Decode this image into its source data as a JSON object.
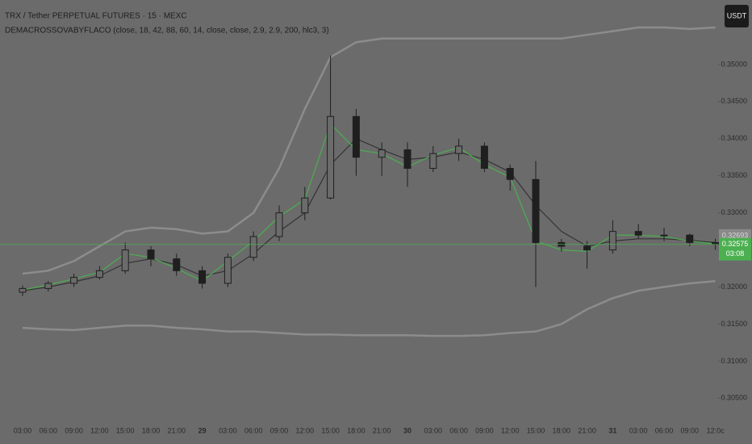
{
  "chart_data": {
    "type": "candlestick",
    "title": "TRX / Tether PERPETUAL FUTURES · 15 · MEXC",
    "subtitle": "DEMACROSSOVABYFLACO (close, 18, 42, 88, 60, 14, close, close, 2.9, 2.9, 200, hlc3, 3)",
    "currency_button": "USDT",
    "categories": [
      "03:00",
      "06:00",
      "09:00",
      "12:00",
      "15:00",
      "18:00",
      "21:00",
      "29",
      "03:00",
      "06:00",
      "09:00",
      "12:00",
      "15:00",
      "18:00",
      "21:00",
      "30",
      "03:00",
      "06:00",
      "09:00",
      "12:00",
      "15:00",
      "18:00",
      "21:00",
      "31",
      "03:00",
      "06:00",
      "09:00",
      "12:0c"
    ],
    "open": [
      0.3193,
      0.3198,
      0.3205,
      0.3213,
      0.3222,
      0.325,
      0.3238,
      0.3222,
      0.3205,
      0.324,
      0.3268,
      0.33,
      0.332,
      0.343,
      0.3375,
      0.3385,
      0.336,
      0.338,
      0.339,
      0.336,
      0.3345,
      0.326,
      0.3255,
      0.325,
      0.3275,
      0.327,
      0.327,
      0.326
    ],
    "high": [
      0.3202,
      0.3208,
      0.3218,
      0.3228,
      0.326,
      0.3255,
      0.3245,
      0.3228,
      0.3245,
      0.3275,
      0.331,
      0.3335,
      0.3512,
      0.344,
      0.3395,
      0.3395,
      0.339,
      0.34,
      0.3395,
      0.3365,
      0.337,
      0.3265,
      0.3262,
      0.329,
      0.3285,
      0.328,
      0.3272,
      0.3265
    ],
    "low": [
      0.3188,
      0.3194,
      0.32,
      0.321,
      0.3218,
      0.3228,
      0.3215,
      0.3198,
      0.32,
      0.3235,
      0.3262,
      0.329,
      0.3318,
      0.335,
      0.335,
      0.3335,
      0.3355,
      0.337,
      0.3355,
      0.333,
      0.32,
      0.3248,
      0.3225,
      0.3245,
      0.3265,
      0.3262,
      0.3255,
      0.325
    ],
    "close": [
      0.3198,
      0.3205,
      0.3213,
      0.3222,
      0.325,
      0.3238,
      0.3222,
      0.3205,
      0.324,
      0.3268,
      0.33,
      0.332,
      0.343,
      0.3375,
      0.3385,
      0.336,
      0.338,
      0.339,
      0.336,
      0.3345,
      0.326,
      0.3255,
      0.325,
      0.3275,
      0.327,
      0.327,
      0.326,
      0.3258
    ],
    "candle_color": "#1f1f1f",
    "lines": [
      {
        "color": "#8c8c8c",
        "values": [
          0.3218,
          0.3222,
          0.3235,
          0.3255,
          0.3275,
          0.328,
          0.3278,
          0.3272,
          0.3275,
          0.33,
          0.336,
          0.344,
          0.351,
          0.353,
          0.3535,
          0.3535,
          0.3535,
          0.3535,
          0.3535,
          0.3535,
          0.3535,
          0.3535,
          0.354,
          0.3545,
          0.355,
          0.355,
          0.3548,
          0.355
        ]
      },
      {
        "color": "#8c8c8c",
        "values": [
          0.3145,
          0.3143,
          0.3142,
          0.3145,
          0.3148,
          0.3148,
          0.3145,
          0.3143,
          0.314,
          0.314,
          0.3138,
          0.3136,
          0.3136,
          0.3135,
          0.3135,
          0.3135,
          0.3134,
          0.3134,
          0.3135,
          0.3138,
          0.314,
          0.315,
          0.317,
          0.3185,
          0.3195,
          0.32,
          0.3205,
          0.3208
        ]
      },
      {
        "color": "#333333",
        "values": [
          0.3195,
          0.32,
          0.3207,
          0.3215,
          0.3232,
          0.3238,
          0.323,
          0.3215,
          0.3222,
          0.3245,
          0.3275,
          0.33,
          0.3365,
          0.34,
          0.3385,
          0.3372,
          0.3375,
          0.3382,
          0.3372,
          0.3355,
          0.331,
          0.3275,
          0.3255,
          0.3262,
          0.3265,
          0.3265,
          0.3263,
          0.326
        ]
      },
      {
        "color": "#4caf50",
        "values": [
          0.3196,
          0.3203,
          0.3211,
          0.322,
          0.3245,
          0.324,
          0.3225,
          0.3208,
          0.3235,
          0.3262,
          0.3295,
          0.3318,
          0.342,
          0.3385,
          0.338,
          0.3362,
          0.3378,
          0.3388,
          0.3365,
          0.3348,
          0.3262,
          0.325,
          0.3248,
          0.327,
          0.327,
          0.3268,
          0.3262,
          0.3258
        ]
      }
    ],
    "ylim": [
      0.3021,
      0.3587
    ],
    "yticks": [
      {
        "value": 0.305,
        "label": "0.30500"
      },
      {
        "value": 0.31,
        "label": "0.31000"
      },
      {
        "value": 0.315,
        "label": "0.31500"
      },
      {
        "value": 0.32,
        "label": "0.32000"
      },
      {
        "value": 0.325,
        "label": "0.32500"
      },
      {
        "value": 0.33,
        "label": "0.33000"
      },
      {
        "value": 0.335,
        "label": "0.33500"
      },
      {
        "value": 0.34,
        "label": "0.34000"
      },
      {
        "value": 0.345,
        "label": "0.34500"
      },
      {
        "value": 0.35,
        "label": "0.35000"
      }
    ],
    "marker_price": {
      "value": 0.32693,
      "label": "0.32693",
      "color": "#8a8a8a"
    },
    "last_price": {
      "value": 0.32575,
      "label": "0.32575",
      "countdown": "03:08",
      "color": "#4caf50"
    }
  }
}
